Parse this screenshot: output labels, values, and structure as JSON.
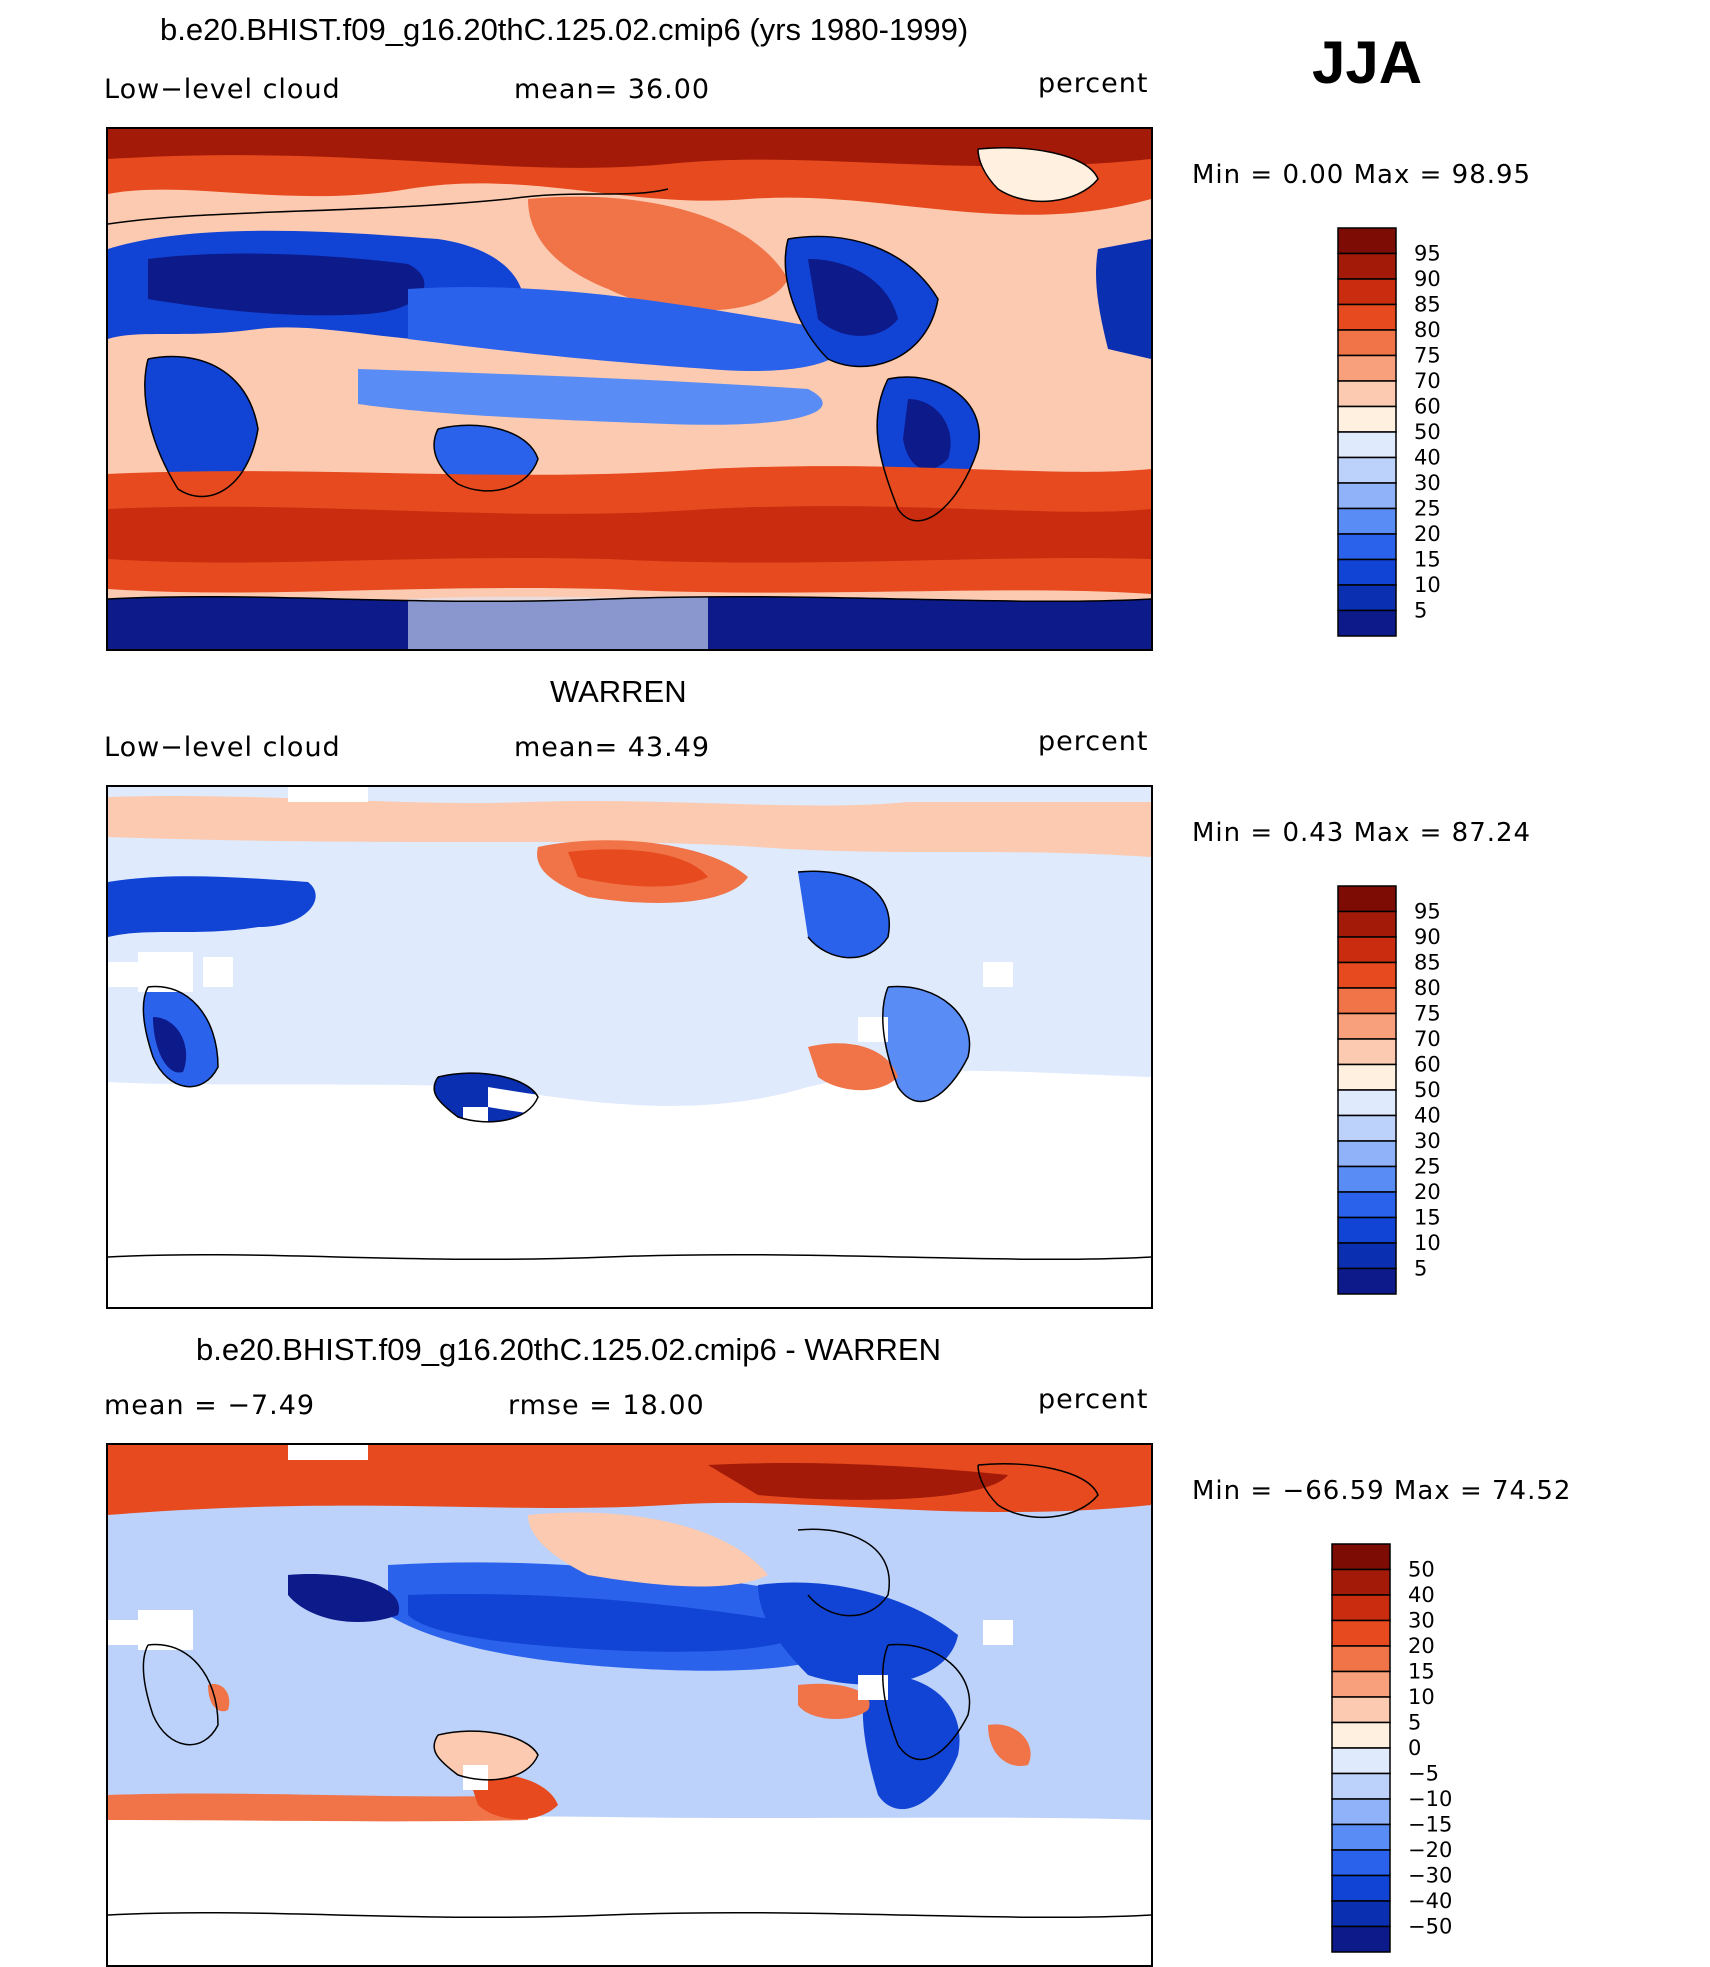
{
  "season": "JJA",
  "panels": [
    {
      "title": "b.e20.BHIST.f09_g16.20thC.125.02.cmip6 (yrs 1980-1999)",
      "left_label": "Low−level cloud",
      "mid_label": "mean=   36.00",
      "right_label": "percent",
      "minmax": "Min  =     0.00  Max  =    98.95",
      "colorbar_labels": [
        "95",
        "90",
        "85",
        "80",
        "75",
        "70",
        "60",
        "50",
        "40",
        "30",
        "25",
        "20",
        "15",
        "10",
        "5"
      ]
    },
    {
      "title": "WARREN",
      "left_label": "Low−level cloud",
      "mid_label": "mean=   43.49",
      "right_label": "percent",
      "minmax": "Min  =     0.43  Max  =    87.24",
      "colorbar_labels": [
        "95",
        "90",
        "85",
        "80",
        "75",
        "70",
        "60",
        "50",
        "40",
        "30",
        "25",
        "20",
        "15",
        "10",
        "5"
      ]
    },
    {
      "title": "b.e20.BHIST.f09_g16.20thC.125.02.cmip6 - WARREN",
      "left_label": "mean  =   −7.49",
      "mid_label": "rmse  =    18.00",
      "right_label": "percent",
      "minmax": "Min  = −66.59  Max  =    74.52",
      "colorbar_labels": [
        "50",
        "40",
        "30",
        "20",
        "15",
        "10",
        "5",
        "0",
        "−5",
        "−10",
        "−15",
        "−20",
        "−30",
        "−40",
        "−50"
      ]
    }
  ],
  "colors": {
    "abs_scale": [
      "#0c1a8a",
      "#0a2fb0",
      "#1143d4",
      "#2a62ec",
      "#5a8cf5",
      "#8fb2f8",
      "#bcd2fb",
      "#dfeafc",
      "#fff0e0",
      "#fccab0",
      "#f8a07c",
      "#f07448",
      "#e64a1e",
      "#c92c0e",
      "#a31a08",
      "#7d0d04"
    ],
    "diff_scale": [
      "#0c1a8a",
      "#0a2fb0",
      "#1143d4",
      "#2a62ec",
      "#5a8cf5",
      "#8fb2f8",
      "#bcd2fb",
      "#dfeafc",
      "#fff0e0",
      "#fccab0",
      "#f8a07c",
      "#f07448",
      "#e64a1e",
      "#c92c0e",
      "#a31a08",
      "#7d0d04"
    ]
  },
  "chart_data": [
    {
      "type": "heatmap",
      "title": "b.e20.BHIST.f09_g16.20thC.125.02.cmip6 (yrs 1980-1999)",
      "variable": "Low-level cloud",
      "units": "percent",
      "mean": 36.0,
      "min": 0.0,
      "max": 98.95,
      "colorbar_levels": [
        5,
        10,
        15,
        20,
        25,
        30,
        40,
        50,
        60,
        70,
        75,
        80,
        85,
        90,
        95
      ]
    },
    {
      "type": "heatmap",
      "title": "WARREN",
      "variable": "Low-level cloud",
      "units": "percent",
      "mean": 43.49,
      "min": 0.43,
      "max": 87.24,
      "colorbar_levels": [
        5,
        10,
        15,
        20,
        25,
        30,
        40,
        50,
        60,
        70,
        75,
        80,
        85,
        90,
        95
      ]
    },
    {
      "type": "heatmap",
      "title": "b.e20.BHIST.f09_g16.20thC.125.02.cmip6 - WARREN",
      "units": "percent",
      "mean": -7.49,
      "rmse": 18.0,
      "min": -66.59,
      "max": 74.52,
      "colorbar_levels": [
        -50,
        -40,
        -30,
        -20,
        -15,
        -10,
        -5,
        0,
        5,
        10,
        15,
        20,
        30,
        40,
        50
      ]
    }
  ]
}
